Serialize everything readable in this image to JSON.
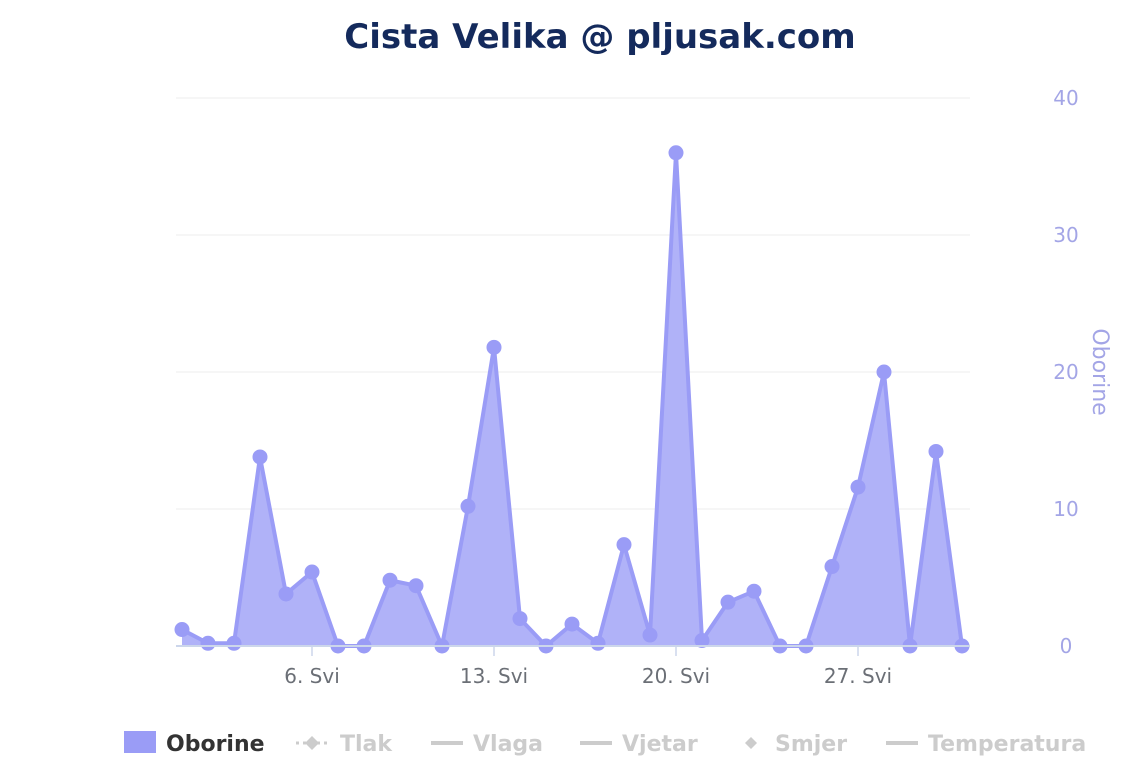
{
  "chart_data": {
    "type": "area",
    "title": "Cista Velika @ pljusak.com",
    "ylabel": "Oborine",
    "ylim": [
      0,
      40
    ],
    "yticks": [
      0,
      10,
      20,
      30,
      40
    ],
    "xticks": [
      {
        "day": 6,
        "label": "6. Svi"
      },
      {
        "day": 13,
        "label": "13. Svi"
      },
      {
        "day": 20,
        "label": "20. Svi"
      },
      {
        "day": 27,
        "label": "27. Svi"
      }
    ],
    "xlim": [
      1,
      31
    ],
    "grid": true,
    "legend_position": "bottom",
    "series": [
      {
        "name": "Oborine",
        "color": "#9a9cf6",
        "x": [
          1,
          2,
          3,
          4,
          5,
          6,
          7,
          8,
          9,
          10,
          11,
          12,
          13,
          14,
          15,
          16,
          17,
          18,
          19,
          20,
          21,
          22,
          23,
          24,
          25,
          26,
          27,
          28,
          29,
          30,
          31
        ],
        "values": [
          1.2,
          0.2,
          0.2,
          13.8,
          3.8,
          5.4,
          0,
          0,
          4.8,
          4.4,
          0,
          10.2,
          21.8,
          2.0,
          0,
          1.6,
          0.2,
          7.4,
          0.8,
          36.0,
          0.4,
          3.2,
          4.0,
          0,
          0,
          5.8,
          11.6,
          20.0,
          0,
          14.2,
          0
        ]
      }
    ],
    "legend": [
      {
        "label": "Oborine",
        "symbol": "rect",
        "active": true
      },
      {
        "label": "Tlak",
        "symbol": "dash-dot-diamond",
        "active": false
      },
      {
        "label": "Vlaga",
        "symbol": "line",
        "active": false
      },
      {
        "label": "Vjetar",
        "symbol": "line",
        "active": false
      },
      {
        "label": "Smjer",
        "symbol": "diamond",
        "active": false
      },
      {
        "label": "Temperatura",
        "symbol": "line",
        "active": false
      }
    ],
    "colors": {
      "series": "#9a9cf6",
      "area": "#b0b2f8",
      "title": "#142a5c",
      "axis_label": "#a3a5e6",
      "x_tick": "#6b6f76",
      "grid": "#eeeeee",
      "legend_active": "#333333",
      "legend_hidden": "#cccccc"
    }
  }
}
